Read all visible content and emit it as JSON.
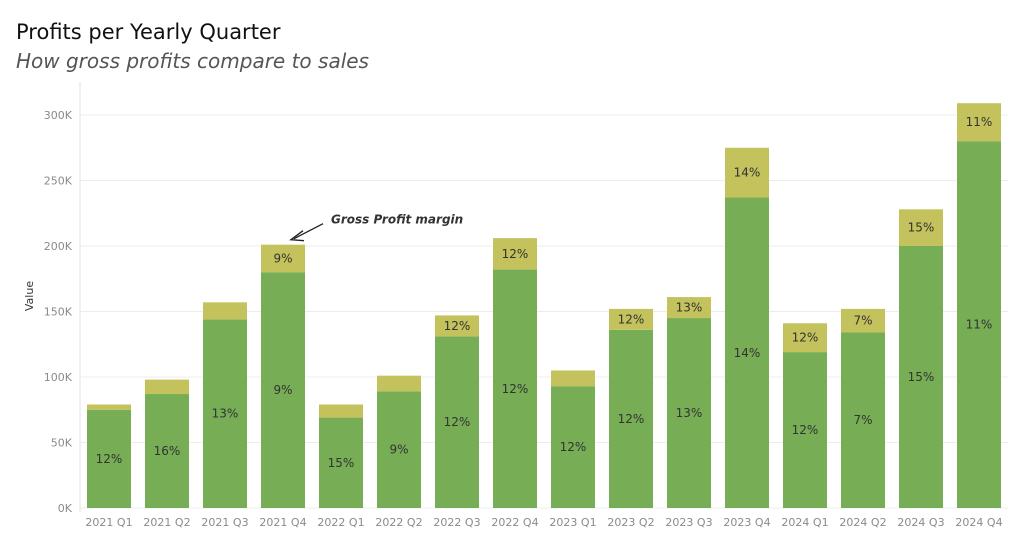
{
  "title": "Profits per Yearly Quarter",
  "subtitle": "How gross profits compare to sales",
  "chart_data": {
    "type": "bar",
    "stacked": true,
    "ylabel": "Value",
    "xlabel": "",
    "ylim": [
      0,
      320000
    ],
    "yticks": [
      "0K",
      "50K",
      "100K",
      "150K",
      "200K",
      "250K",
      "300K"
    ],
    "ytick_values": [
      0,
      50000,
      100000,
      150000,
      200000,
      250000,
      300000
    ],
    "grid": true,
    "categories": [
      "2021 Q1",
      "2021 Q2",
      "2021 Q3",
      "2021 Q4",
      "2022 Q1",
      "2022 Q2",
      "2022 Q3",
      "2022 Q4",
      "2023 Q1",
      "2023 Q2",
      "2023 Q3",
      "2023 Q4",
      "2024 Q1",
      "2024 Q2",
      "2024 Q3",
      "2024 Q4"
    ],
    "series": [
      {
        "color": "#77ad55",
        "values": [
          75000,
          87000,
          144000,
          180000,
          69000,
          89000,
          131000,
          182000,
          93000,
          136000,
          145000,
          237000,
          119000,
          134000,
          200000,
          280000
        ],
        "labels": [
          "12%",
          "16%",
          "13%",
          "9%",
          "15%",
          "9%",
          "12%",
          "12%",
          "12%",
          "12%",
          "13%",
          "14%",
          "12%",
          "7%",
          "15%",
          "11%"
        ]
      },
      {
        "color": "#c3c25c",
        "values": [
          4000,
          11000,
          13000,
          21000,
          10000,
          12000,
          16000,
          24000,
          12000,
          16000,
          16000,
          38000,
          22000,
          18000,
          28000,
          29000
        ],
        "labels": [
          "",
          "",
          "",
          "9%",
          "",
          "",
          "12%",
          "12%",
          "",
          "12%",
          "13%",
          "14%",
          "12%",
          "7%",
          "15%",
          "11%"
        ]
      }
    ],
    "annotations": [
      {
        "text": "Gross Profit margin",
        "category": "2021 Q4"
      }
    ]
  }
}
